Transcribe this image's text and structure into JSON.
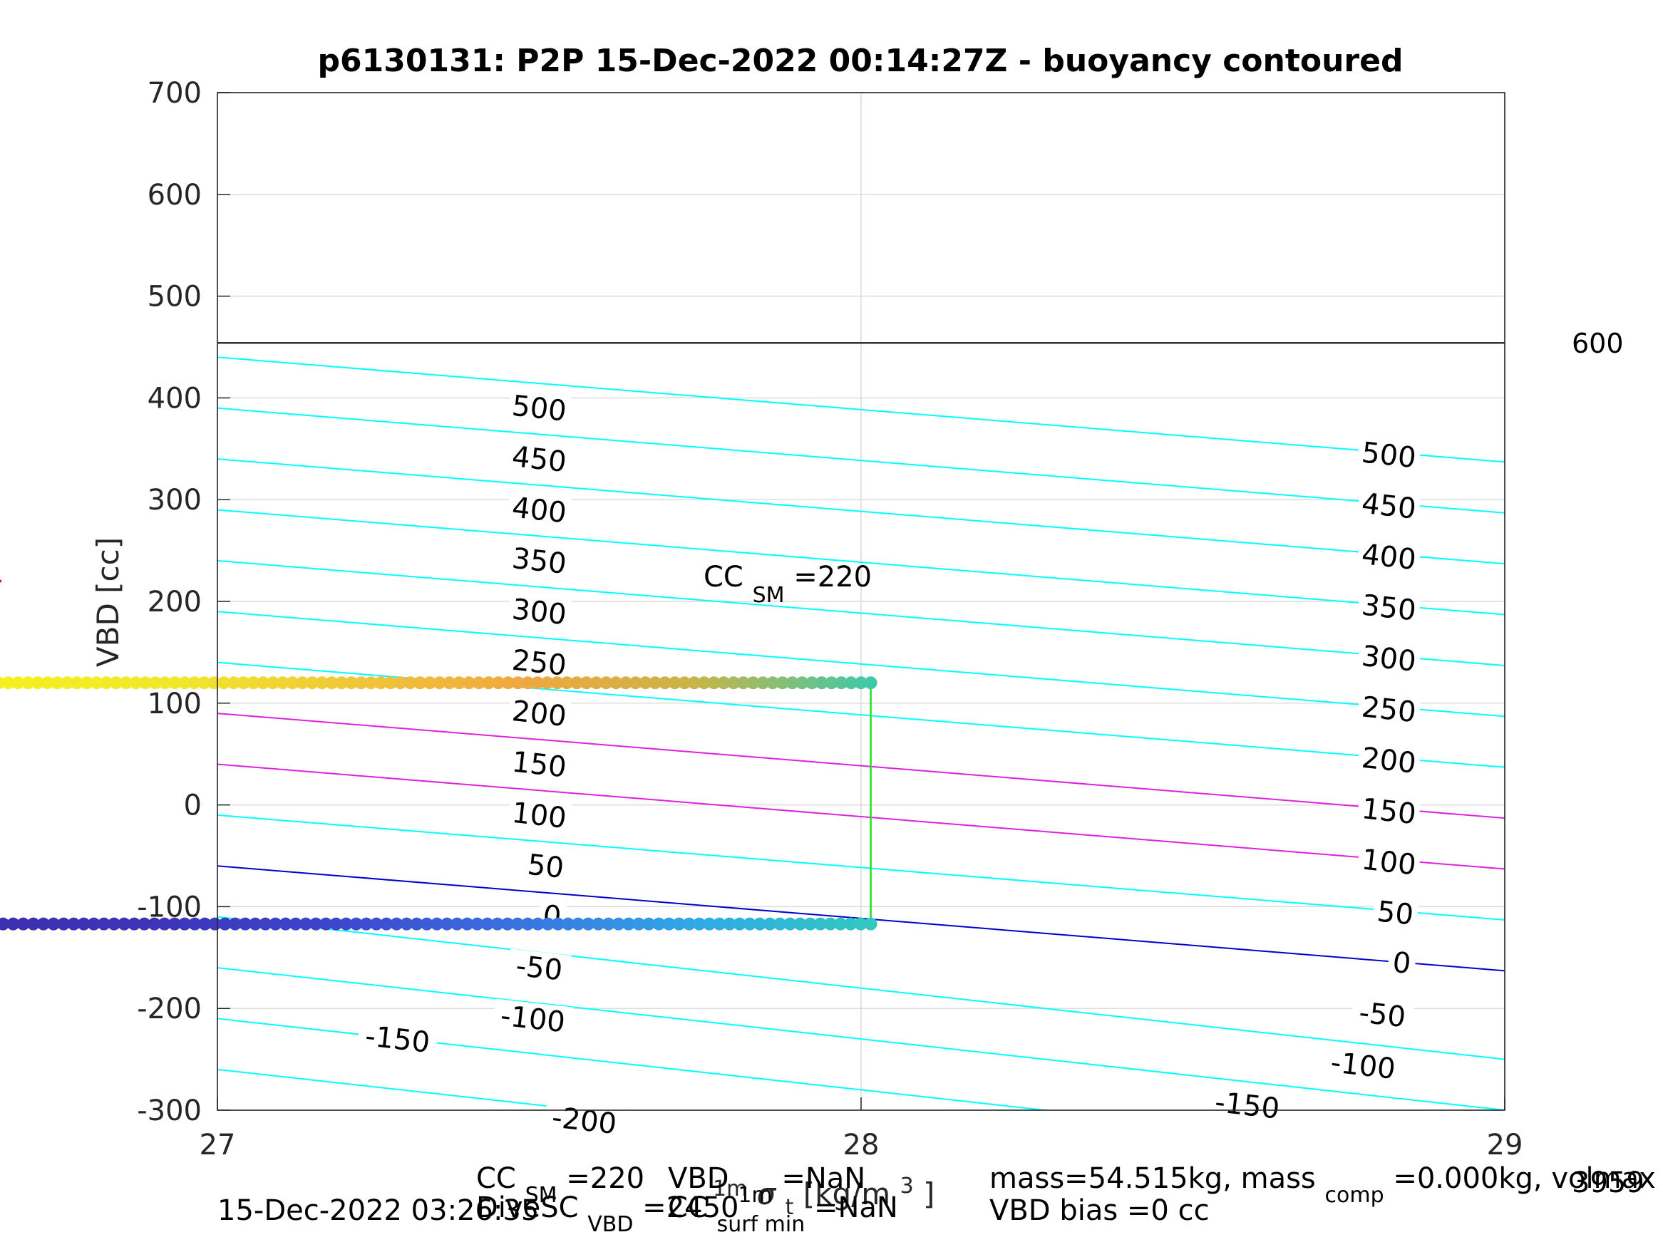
{
  "chart_data": {
    "type": "scatter",
    "title": "p6130131: P2P 15-Dec-2022 00:14:27Z - buoyancy contoured",
    "xlabel": "1m σ_t [kg/m^3]",
    "xlabel_parts": {
      "pre": "1m",
      "sigma": "σ",
      "sub": "t",
      "unit": " [kg/m",
      "sup": "3",
      "close": "]"
    },
    "ylabel": "VBD [cc]",
    "xlim": [
      27,
      29
    ],
    "ylim": [
      -300,
      700
    ],
    "xticks": [
      "27",
      "28",
      "29"
    ],
    "yticks": [
      "-300",
      "-200",
      "-100",
      "0",
      "100",
      "200",
      "300",
      "400",
      "500",
      "600",
      "700"
    ],
    "grid": true,
    "contours": {
      "levels": [
        -200,
        -150,
        -100,
        -50,
        0,
        50,
        100,
        150,
        200,
        250,
        300,
        350,
        400,
        450,
        500
      ],
      "y_at_x27": [
        -260,
        -210,
        -160,
        -110,
        -60,
        -10,
        40,
        90,
        140,
        190,
        240,
        290,
        340,
        390,
        440
      ],
      "y_at_x29": [
        -400,
        -350,
        -300,
        -250,
        -163,
        -113,
        -63,
        -13,
        37,
        87,
        137,
        187,
        237,
        287,
        337
      ],
      "color_cyan": "#00ffff",
      "color_magenta": "#e020e0",
      "color_zero": "#0000cc",
      "magenta_levels": [
        100,
        150
      ],
      "left_labels": [
        {
          "text": "500",
          "x": 27.5,
          "y": 390
        },
        {
          "text": "450",
          "x": 27.5,
          "y": 340
        },
        {
          "text": "400",
          "x": 27.5,
          "y": 290
        },
        {
          "text": "350",
          "x": 27.5,
          "y": 240
        },
        {
          "text": "300",
          "x": 27.5,
          "y": 190
        },
        {
          "text": "250",
          "x": 27.5,
          "y": 140
        },
        {
          "text": "200",
          "x": 27.5,
          "y": 90
        },
        {
          "text": "150",
          "x": 27.5,
          "y": 40
        },
        {
          "text": "100",
          "x": 27.5,
          "y": -10
        },
        {
          "text": "50",
          "x": 27.51,
          "y": -60
        },
        {
          "text": "0",
          "x": 27.52,
          "y": -109
        },
        {
          "text": "-50",
          "x": 27.5,
          "y": -160
        },
        {
          "text": "-100",
          "x": 27.49,
          "y": -210
        },
        {
          "text": "-150",
          "x": 27.28,
          "y": -230
        },
        {
          "text": "-200",
          "x": 27.57,
          "y": -310
        }
      ],
      "right_labels": [
        {
          "text": "500",
          "x": 28.82,
          "y": 344
        },
        {
          "text": "450",
          "x": 28.82,
          "y": 294
        },
        {
          "text": "400",
          "x": 28.82,
          "y": 244
        },
        {
          "text": "350",
          "x": 28.82,
          "y": 194
        },
        {
          "text": "300",
          "x": 28.82,
          "y": 144
        },
        {
          "text": "250",
          "x": 28.82,
          "y": 94
        },
        {
          "text": "200",
          "x": 28.82,
          "y": 44
        },
        {
          "text": "150",
          "x": 28.82,
          "y": -6
        },
        {
          "text": "100",
          "x": 28.82,
          "y": -56
        },
        {
          "text": "50",
          "x": 28.83,
          "y": -106
        },
        {
          "text": "0",
          "x": 28.84,
          "y": -155
        },
        {
          "text": "-50",
          "x": 28.81,
          "y": -206
        },
        {
          "text": "-100",
          "x": 28.78,
          "y": -256
        },
        {
          "text": "-150",
          "x": 28.6,
          "y": -295
        }
      ]
    },
    "limit_line": {
      "y": 454,
      "label": "600"
    },
    "cc_sm_marker": {
      "x": 26.65,
      "y": 220,
      "color": "#ff0000",
      "label_main": "CC",
      "label_sub": "SM",
      "label_val": "=220"
    },
    "dive_path": {
      "color": "#22dd22",
      "points": [
        [
          28.015,
          120
        ],
        [
          28.015,
          -117
        ]
      ]
    },
    "series": [
      {
        "x_start": 26.66,
        "x_end": 28.015,
        "y": 120,
        "colors": [
          "#f4f020",
          "#f0e82a",
          "#f0c838",
          "#f0a840",
          "#c8b448",
          "#40c8a8"
        ]
      },
      {
        "x_start": 26.62,
        "x_end": 28.015,
        "y": -117,
        "colors": [
          "#3c2fb0",
          "#3e34b8",
          "#3c45cc",
          "#3a70e0",
          "#30a8e8",
          "#30c8c0"
        ]
      }
    ],
    "footer": {
      "cc_sm": {
        "main": "CC",
        "sub": "SM",
        "val": "=220"
      },
      "vbd": {
        "main": "VBD",
        "sub": "1m",
        "val": "=NaN"
      },
      "mass": {
        "text": "mass=54.515kg, mass",
        "sub": "comp",
        "val": "=0.000kg, volmax"
      },
      "volmax_val": "3959",
      "timestamp": "15-Dec-2022 03:26:35",
      "divesc": {
        "main": "DiveSC",
        "sub": "VBD",
        "val": "=2450"
      },
      "cc": {
        "main": "CC",
        "sub": "surf min",
        "val": "=NaN"
      },
      "vbd_bias": "VBD bias =0 cc"
    }
  }
}
